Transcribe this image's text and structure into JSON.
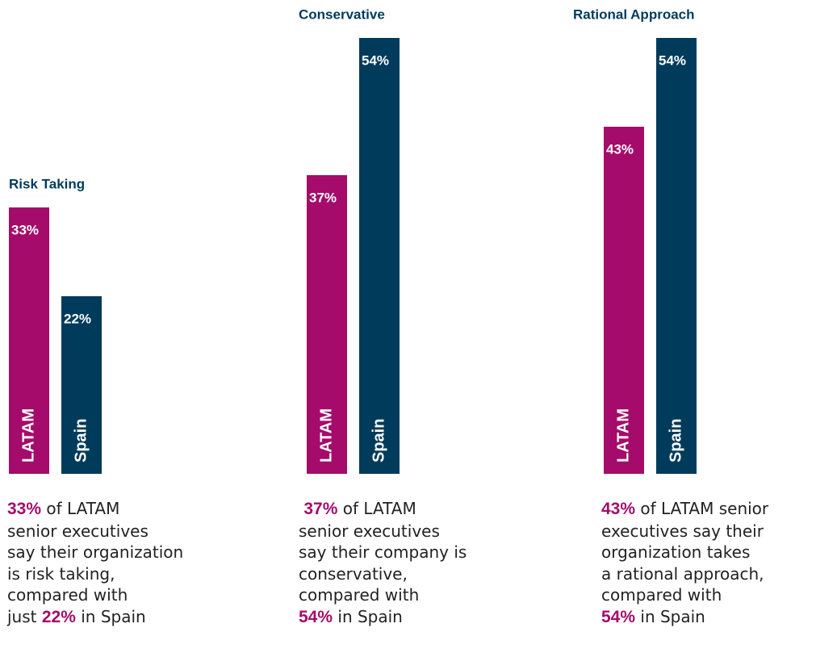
{
  "chart_data": [
    {
      "type": "bar",
      "title": "Risk Taking",
      "categories": [
        "LATAM",
        "Spain"
      ],
      "values": [
        33,
        22
      ],
      "value_labels": [
        "33%",
        "22%"
      ],
      "colors": [
        "#a50b6b",
        "#003b5c"
      ],
      "highlight_color": "#a50b6b",
      "caption": [
        [
          {
            "text": "33%",
            "emphasis": true
          },
          {
            "text": " of LATAM"
          }
        ],
        [
          {
            "text": "senior executives"
          }
        ],
        [
          {
            "text": "say their organization"
          }
        ],
        [
          {
            "text": "is risk taking,"
          }
        ],
        [
          {
            "text": "compared with"
          }
        ],
        [
          {
            "text": "just "
          },
          {
            "text": "22%",
            "emphasis": true
          },
          {
            "text": " in Spain"
          }
        ]
      ]
    },
    {
      "type": "bar",
      "title": "Conservative",
      "categories": [
        "LATAM",
        "Spain"
      ],
      "values": [
        37,
        54
      ],
      "value_labels": [
        "37%",
        "54%"
      ],
      "colors": [
        "#a50b6b",
        "#003b5c"
      ],
      "highlight_color": "#a50b6b",
      "caption": [
        [
          {
            "text": " "
          },
          {
            "text": "37%",
            "emphasis": true
          },
          {
            "text": " of LATAM"
          }
        ],
        [
          {
            "text": "senior executives"
          }
        ],
        [
          {
            "text": "say their company is"
          }
        ],
        [
          {
            "text": "conservative,"
          }
        ],
        [
          {
            "text": "compared with"
          }
        ],
        [
          {
            "text": "54%",
            "emphasis": true
          },
          {
            "text": " in Spain"
          }
        ]
      ]
    },
    {
      "type": "bar",
      "title": "Rational Approach",
      "categories": [
        "LATAM",
        "Spain"
      ],
      "values": [
        43,
        54
      ],
      "value_labels": [
        "43%",
        "54%"
      ],
      "colors": [
        "#a50b6b",
        "#003b5c"
      ],
      "highlight_color": "#a50b6b",
      "caption": [
        [
          {
            "text": "43%",
            "emphasis": true
          },
          {
            "text": " of LATAM senior"
          }
        ],
        [
          {
            "text": "executives say their"
          }
        ],
        [
          {
            "text": "organization takes"
          }
        ],
        [
          {
            "text": "a rational approach,"
          }
        ],
        [
          {
            "text": "compared with"
          }
        ],
        [
          {
            "text": "54%",
            "emphasis": true
          },
          {
            "text": " in Spain"
          }
        ]
      ]
    }
  ]
}
